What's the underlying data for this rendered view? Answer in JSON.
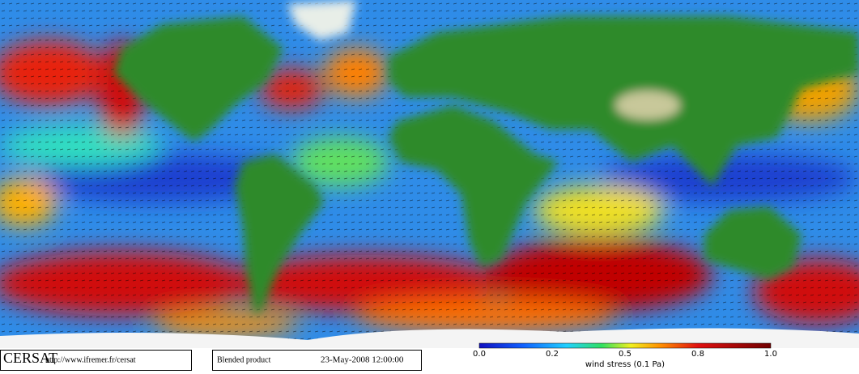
{
  "header": {
    "logo": "CERSAT",
    "url": "http://www.ifremer.fr/cersat"
  },
  "product": {
    "name": "Blended product",
    "date": "23-May-2008 12:00:00"
  },
  "colorbar": {
    "ticks": [
      "0.0",
      "0.2",
      "0.5",
      "0.8",
      "1.0"
    ],
    "label": "wind stress (0.1 Pa)"
  }
}
